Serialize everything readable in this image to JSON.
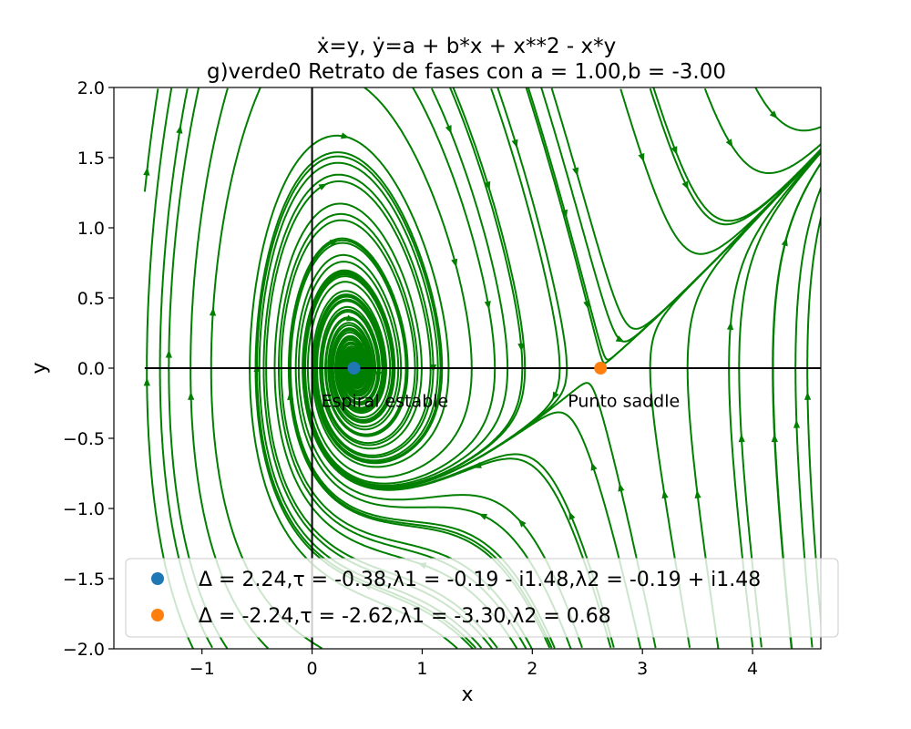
{
  "chart_data": {
    "type": "streamplot",
    "title_line1": "ẋ=y, ẏ=a + b*x + x**2 - x*y",
    "title_line2": "g)verde0 Retrato de fases con a = 1.00,b = -3.00",
    "xlabel": "x",
    "ylabel": "y",
    "xlim": [
      -1.8,
      4.62
    ],
    "ylim": [
      -2.0,
      2.0
    ],
    "xticks": [
      -1,
      0,
      1,
      2,
      3,
      4
    ],
    "xtick_labels": [
      "−1",
      "0",
      "1",
      "2",
      "3",
      "4"
    ],
    "yticks": [
      -2.0,
      -1.5,
      -1.0,
      -0.5,
      0.0,
      0.5,
      1.0,
      1.5,
      2.0
    ],
    "ytick_labels": [
      "−2.0",
      "−1.5",
      "−1.0",
      "−0.5",
      "0.0",
      "0.5",
      "1.0",
      "1.5",
      "2.0"
    ],
    "parameters": {
      "a": 1.0,
      "b": -3.0
    },
    "stream_color": "#007f00",
    "equilibria": [
      {
        "x": 0.38,
        "y": 0.0,
        "color": "#1f77b4",
        "annotation": "Espiral estable",
        "legend": "Δ = 2.24,τ = -0.38,λ1 = -0.19 - i1.48,λ2 = -0.19 + i1.48"
      },
      {
        "x": 2.62,
        "y": 0.0,
        "color": "#ff7f0e",
        "annotation": "Punto saddle",
        "legend": "Δ = -2.24,τ = -2.62,λ1 = -3.30,λ2 = 0.68"
      }
    ],
    "annotation_offset_y": -0.25,
    "legend_placement": "lower-center",
    "grid": false
  }
}
